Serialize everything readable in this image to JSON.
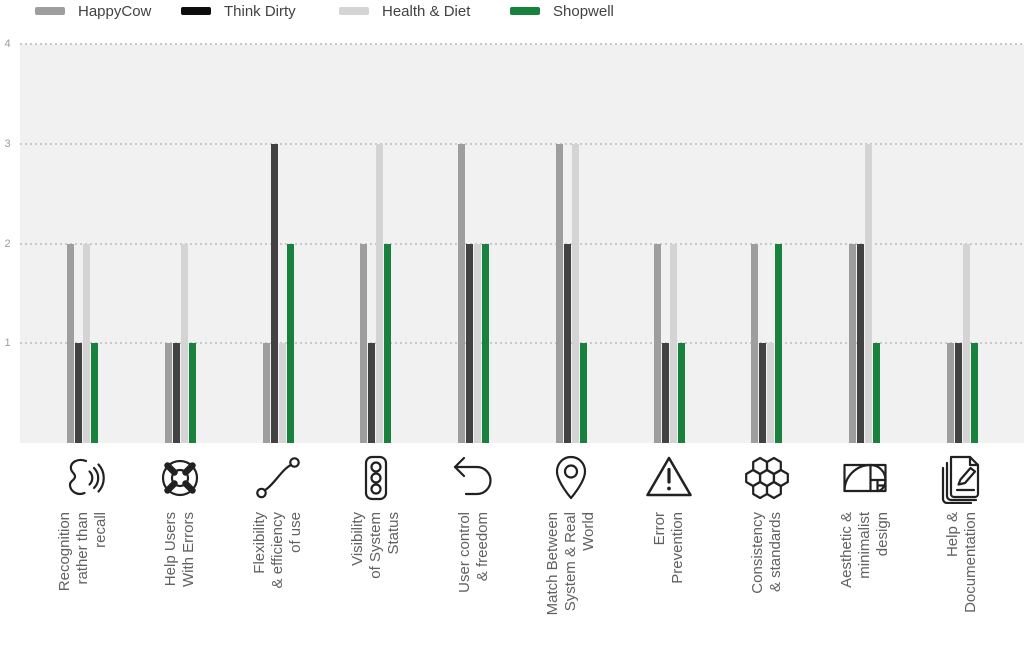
{
  "legend": {
    "items": [
      {
        "label": "HappyCow",
        "swatch_color": "#9e9e9e"
      },
      {
        "label": "Think Dirty",
        "swatch_color": "#0d0d0d"
      },
      {
        "label": "Health & Diet",
        "swatch_color": "#d4d4d4"
      },
      {
        "label": "Shopwell",
        "swatch_color": "#17813d"
      }
    ]
  },
  "chart_data": {
    "type": "bar",
    "title": "",
    "xlabel": "",
    "ylabel": "",
    "ylim": [
      0,
      4
    ],
    "y_ticks": [
      1,
      2,
      3,
      4
    ],
    "grid": "horizontal-dotted",
    "legend_position": "top-left",
    "series": [
      {
        "name": "HappyCow",
        "color": "#9e9e9e",
        "values": [
          2,
          1,
          1,
          2,
          3,
          3,
          2,
          2,
          2,
          1
        ]
      },
      {
        "name": "Think Dirty",
        "color": "#424242",
        "values": [
          1,
          1,
          3,
          1,
          2,
          2,
          1,
          1,
          2,
          1
        ]
      },
      {
        "name": "Health & Diet",
        "color": "#d4d4d4",
        "values": [
          2,
          2,
          1,
          3,
          2,
          3,
          2,
          1,
          3,
          2
        ]
      },
      {
        "name": "Shopwell",
        "color": "#17813d",
        "values": [
          1,
          1,
          2,
          2,
          2,
          1,
          1,
          2,
          1,
          1
        ]
      }
    ],
    "categories": [
      {
        "label": "Recognition\nrather than\nrecall",
        "icon": "speech-voice-icon"
      },
      {
        "label": "Help Users\nWith Errors",
        "icon": "lifebuoy-icon"
      },
      {
        "label": "Flexibility\n& efficiency\nof use",
        "icon": "trend-line-icon"
      },
      {
        "label": "Visibility\nof System\nStatus",
        "icon": "traffic-light-icon"
      },
      {
        "label": "User control\n& freedom",
        "icon": "undo-arrow-icon"
      },
      {
        "label": "Match Between\nSystem & Real\nWorld",
        "icon": "map-pin-icon"
      },
      {
        "label": "Error\nPrevention",
        "icon": "warning-triangle-icon"
      },
      {
        "label": "Consistency\n& standards",
        "icon": "honeycomb-icon"
      },
      {
        "label": "Aesthetic &\nminimalist\ndesign",
        "icon": "golden-ratio-icon"
      },
      {
        "label": "Help &\nDocumentation",
        "icon": "documents-pencil-icon"
      }
    ]
  },
  "colors": {
    "plot_background": "#f1f1f1",
    "gridline": "#c9c9c9",
    "axis_tick_text": "#9e9e9e",
    "category_label_text": "#616161",
    "legend_text": "#424242",
    "icon_stroke": "#212121"
  }
}
